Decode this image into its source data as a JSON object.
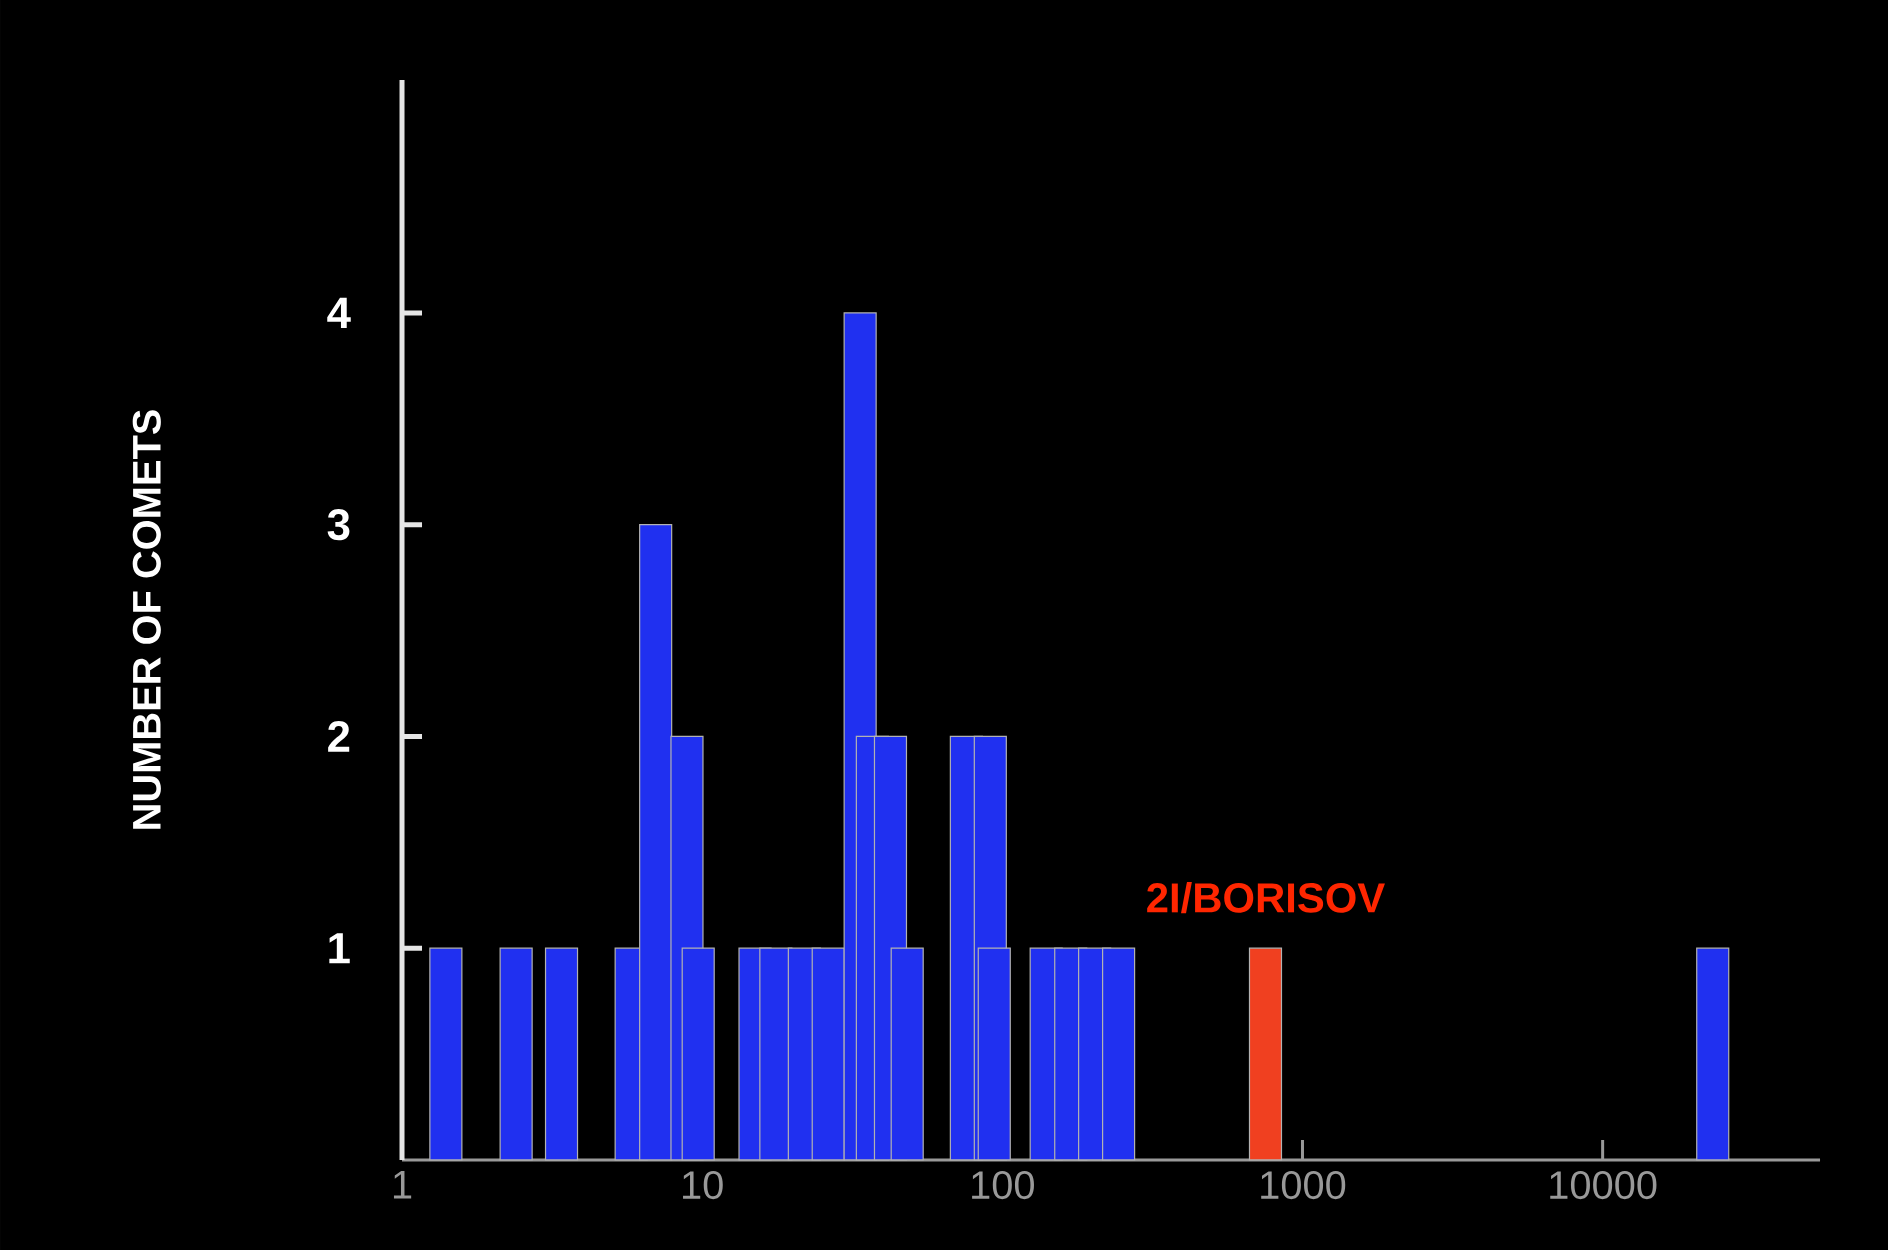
{
  "chart_data": {
    "type": "bar",
    "ylabel": "NUMBER OF COMETS",
    "log": "x",
    "x": [
      1.4,
      2.4,
      3.4,
      5.8,
      7.0,
      8.9,
      9.7,
      15,
      17.6,
      21.9,
      26.3,
      33.6,
      36.9,
      42.4,
      48.2,
      75.9,
      91.2,
      94,
      140,
      169,
      203,
      244,
      753,
      23270
    ],
    "values": [
      1,
      1,
      1,
      1,
      3,
      2,
      1,
      1,
      1,
      1,
      1,
      4,
      2,
      2,
      1,
      2,
      2,
      1,
      1,
      1,
      1,
      1,
      1,
      1
    ],
    "colors": [
      "#2030f0",
      "#2030f0",
      "#2030f0",
      "#2030f0",
      "#2030f0",
      "#2030f0",
      "#2030f0",
      "#2030f0",
      "#2030f0",
      "#2030f0",
      "#2030f0",
      "#2030f0",
      "#2030f0",
      "#2030f0",
      "#2030f0",
      "#2030f0",
      "#2030f0",
      "#2030f0",
      "#2030f0",
      "#2030f0",
      "#2030f0",
      "#2030f0",
      "#f04020",
      "#2030f0"
    ],
    "xlim": [
      1,
      53000
    ],
    "xticks": [
      1,
      10,
      100,
      1000,
      10000
    ],
    "ylim": [
      0,
      5.1
    ],
    "yticks": [
      1,
      2,
      3,
      4
    ],
    "annotations": [
      {
        "text": "2I/BORISOV",
        "x": 753,
        "y": 1
      }
    ],
    "grid": false
  }
}
